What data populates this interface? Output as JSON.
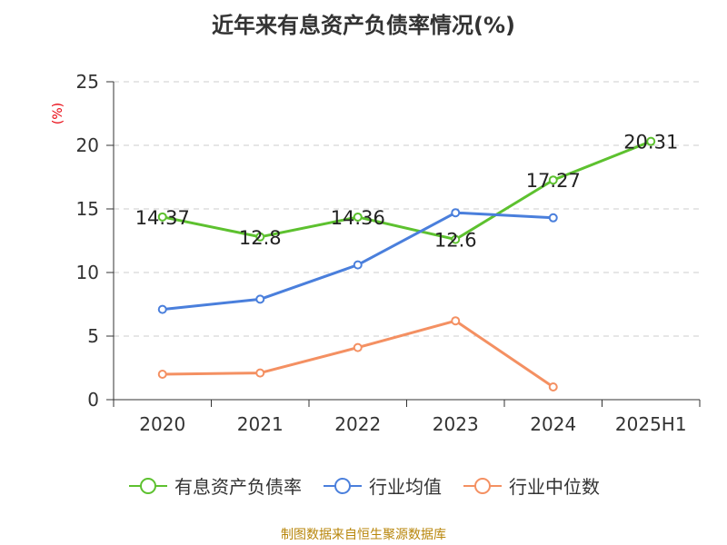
{
  "title": "近年来有息资产负债率情况(%)",
  "footer": "制图数据来自恒生聚源数据库",
  "colors": {
    "series0": "#5dc12f",
    "series1": "#4a7fdc",
    "series2": "#f49062",
    "axis": "#333333",
    "grid": "#cccccc",
    "unit": "#e8000b"
  },
  "chart_data": {
    "type": "line",
    "title": "近年来有息资产负债率情况(%)",
    "ylabel": "(%)",
    "xlabel": "",
    "categories": [
      "2020",
      "2021",
      "2022",
      "2023",
      "2024",
      "2025H1"
    ],
    "ylim": [
      0,
      25
    ],
    "yticks": [
      0,
      5,
      10,
      15,
      20,
      25
    ],
    "grid": "horizontal-dashed",
    "legend_position": "bottom",
    "series": [
      {
        "name": "有息资产负债率",
        "values": [
          14.37,
          12.8,
          14.36,
          12.6,
          17.27,
          20.31
        ],
        "labels": [
          "14.37",
          "12.8",
          "14.36",
          "12.6",
          "17.27",
          "20.31"
        ]
      },
      {
        "name": "行业均值",
        "values": [
          7.1,
          7.9,
          10.6,
          14.7,
          14.3,
          null
        ]
      },
      {
        "name": "行业中位数",
        "values": [
          2.0,
          2.1,
          4.1,
          6.2,
          1.0,
          null
        ]
      }
    ]
  }
}
